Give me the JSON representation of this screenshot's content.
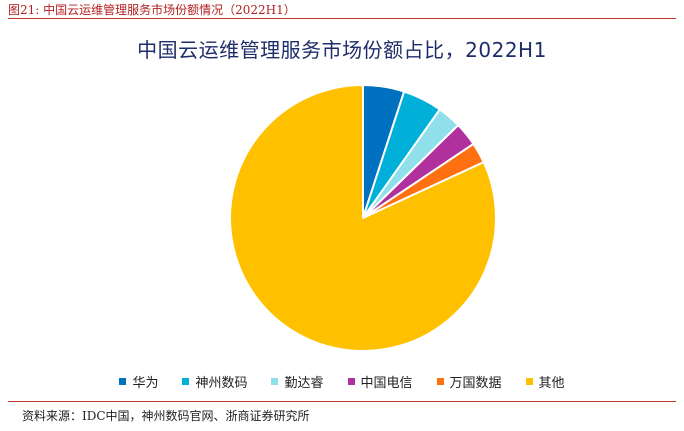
{
  "figure": {
    "caption": "图21:   中国云运维管理服务市场份额情况（2022H1）",
    "source": "资料来源：IDC中国，神州数码官网、浙商证券研究所"
  },
  "chart_data": {
    "type": "pie",
    "title": "中国云运维管理服务市场份额占比，2022H1",
    "legend_position": "bottom",
    "slices": [
      {
        "label": "华为",
        "value": 5.0,
        "color": "#0070c0"
      },
      {
        "label": "神州数码",
        "value": 4.8,
        "color": "#00b0d8"
      },
      {
        "label": "勤达睿",
        "value": 2.9,
        "color": "#8fe0ea"
      },
      {
        "label": "中国电信",
        "value": 2.9,
        "color": "#b0309e"
      },
      {
        "label": "万国数据",
        "value": 2.5,
        "color": "#ff7011"
      },
      {
        "label": "其他",
        "value": 81.9,
        "color": "#ffc000"
      }
    ]
  }
}
